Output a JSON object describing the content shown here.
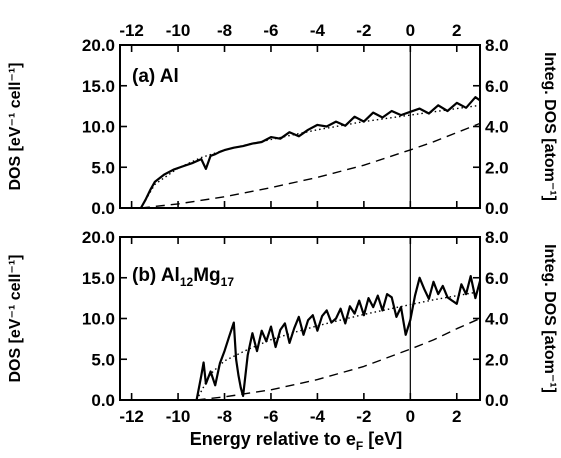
{
  "chart_data": {
    "type": "line",
    "shared": {
      "x_top_ticks": [
        "-12",
        "-10",
        "-8",
        "-6",
        "-4",
        "-2",
        "0",
        "2"
      ],
      "x_bottom_ticks": [
        "-12",
        "-10",
        "-8",
        "-6",
        "-4",
        "-2",
        "0",
        "2"
      ],
      "xlim": [
        -12.5,
        3.0
      ],
      "xlabel_main": "Energy relative to e",
      "xlabel_sub": "F",
      "xlabel_unit": " [eV]",
      "fermi_line_x": 0
    },
    "panels": [
      {
        "label": "(a) Al",
        "label_main": "(a) Al",
        "label_parts": [],
        "ylim": [
          0,
          20
        ],
        "y_ticks": [
          "0.0",
          "5.0",
          "10.0",
          "15.0",
          "20.0"
        ],
        "y2lim": [
          0,
          8
        ],
        "y2_ticks": [
          "0.0",
          "2.0",
          "4.0",
          "6.0",
          "8.0"
        ],
        "ylabel": "DOS [eV⁻¹ cell⁻¹]",
        "y2label": "Integ. DOS [atom⁻¹]",
        "series": [
          {
            "style": "solid",
            "x": [
              -11.6,
              -11.4,
              -11.2,
              -11.0,
              -10.6,
              -10.2,
              -9.8,
              -9.4,
              -9.0,
              -8.8,
              -8.6,
              -8.4,
              -8.2,
              -8.0,
              -7.6,
              -7.2,
              -6.8,
              -6.4,
              -6.0,
              -5.6,
              -5.2,
              -4.8,
              -4.4,
              -4.0,
              -3.6,
              -3.2,
              -2.8,
              -2.4,
              -2.0,
              -1.6,
              -1.2,
              -0.8,
              -0.4,
              0.0,
              0.4,
              0.8,
              1.2,
              1.6,
              2.0,
              2.4,
              2.8,
              3.0
            ],
            "y": [
              0.0,
              1.0,
              2.2,
              3.2,
              4.1,
              4.7,
              5.1,
              5.5,
              6.0,
              4.8,
              6.4,
              6.6,
              6.9,
              7.1,
              7.4,
              7.6,
              7.9,
              8.1,
              8.7,
              8.5,
              9.3,
              8.8,
              9.6,
              10.2,
              10.0,
              10.6,
              10.1,
              11.2,
              10.6,
              11.7,
              11.1,
              11.9,
              11.4,
              11.8,
              12.2,
              11.6,
              12.6,
              11.9,
              12.9,
              12.3,
              13.6,
              13.2
            ]
          },
          {
            "style": "dotted",
            "x": [
              -11.6,
              -11.0,
              -10.0,
              -9.0,
              -8.0,
              -7.0,
              -6.0,
              -5.0,
              -4.0,
              -3.0,
              -2.0,
              -1.0,
              0.0,
              1.0,
              2.0,
              3.0
            ],
            "y": [
              0.0,
              2.9,
              4.9,
              6.2,
              7.1,
              7.8,
              8.4,
              9.0,
              9.6,
              10.1,
              10.6,
              11.0,
              11.4,
              11.8,
              12.2,
              12.6
            ]
          },
          {
            "style": "dashed",
            "axis": "right",
            "x": [
              -11.6,
              -10.0,
              -8.0,
              -6.0,
              -4.0,
              -2.0,
              0.0,
              1.0,
              2.0,
              3.0
            ],
            "y": [
              0.0,
              0.2,
              0.55,
              1.0,
              1.5,
              2.1,
              2.85,
              3.25,
              3.7,
              4.15
            ]
          }
        ]
      },
      {
        "label": "(b) Al12Mg17",
        "label_main": "(b) Al",
        "label_parts": [
          {
            "text": "12",
            "sub": true
          },
          {
            "text": "Mg",
            "sub": false
          },
          {
            "text": "17",
            "sub": true
          }
        ],
        "ylim": [
          0,
          20
        ],
        "y_ticks": [
          "0.0",
          "5.0",
          "10.0",
          "15.0",
          "20.0"
        ],
        "y2lim": [
          0,
          8
        ],
        "y2_ticks": [
          "0.0",
          "2.0",
          "4.0",
          "6.0",
          "8.0"
        ],
        "ylabel": "DOS [eV⁻¹ cell⁻¹]",
        "y2label": "Integ. DOS [atom⁻¹]",
        "series": [
          {
            "style": "solid",
            "x": [
              -9.2,
              -9.0,
              -8.9,
              -8.8,
              -8.6,
              -8.4,
              -8.2,
              -8.0,
              -7.8,
              -7.6,
              -7.5,
              -7.4,
              -7.3,
              -7.2,
              -7.0,
              -6.8,
              -6.6,
              -6.4,
              -6.2,
              -6.0,
              -5.8,
              -5.6,
              -5.4,
              -5.2,
              -5.0,
              -4.8,
              -4.6,
              -4.4,
              -4.2,
              -4.0,
              -3.8,
              -3.6,
              -3.4,
              -3.2,
              -3.0,
              -2.8,
              -2.6,
              -2.4,
              -2.2,
              -2.0,
              -1.8,
              -1.6,
              -1.4,
              -1.2,
              -1.0,
              -0.8,
              -0.6,
              -0.4,
              -0.2,
              0.0,
              0.2,
              0.4,
              0.6,
              0.8,
              1.0,
              1.2,
              1.4,
              1.6,
              1.8,
              2.0,
              2.2,
              2.4,
              2.6,
              2.8,
              3.0
            ],
            "y": [
              0.0,
              3.0,
              4.6,
              2.0,
              3.5,
              1.8,
              4.5,
              6.0,
              7.8,
              9.5,
              5.0,
              3.0,
              1.5,
              0.5,
              5.5,
              8.2,
              6.0,
              8.5,
              7.2,
              9.0,
              6.5,
              8.6,
              9.4,
              7.0,
              8.8,
              10.2,
              8.0,
              9.8,
              10.4,
              8.5,
              10.3,
              11.0,
              9.5,
              10.0,
              11.2,
              9.4,
              11.5,
              10.6,
              12.2,
              10.4,
              12.5,
              11.4,
              12.8,
              11.0,
              13.0,
              12.6,
              10.2,
              11.4,
              8.0,
              9.8,
              12.8,
              15.0,
              13.6,
              12.4,
              14.5,
              13.0,
              14.0,
              12.6,
              12.2,
              11.8,
              14.2,
              13.0,
              15.2,
              12.5,
              14.6
            ]
          },
          {
            "style": "dotted",
            "x": [
              -9.2,
              -8.6,
              -8.0,
              -7.0,
              -6.0,
              -5.0,
              -4.0,
              -3.0,
              -2.0,
              -1.0,
              0.0,
              1.0,
              2.0,
              3.0
            ],
            "y": [
              0.0,
              3.2,
              4.8,
              6.2,
              7.4,
              8.3,
              9.1,
              9.8,
              10.5,
              11.1,
              11.7,
              12.3,
              12.8,
              13.3
            ]
          },
          {
            "style": "dashed",
            "axis": "right",
            "x": [
              -9.2,
              -8.0,
              -6.0,
              -4.0,
              -2.0,
              0.0,
              1.0,
              2.0,
              3.0
            ],
            "y": [
              0.0,
              0.15,
              0.5,
              1.0,
              1.65,
              2.5,
              2.95,
              3.5,
              4.0
            ]
          }
        ]
      }
    ]
  }
}
